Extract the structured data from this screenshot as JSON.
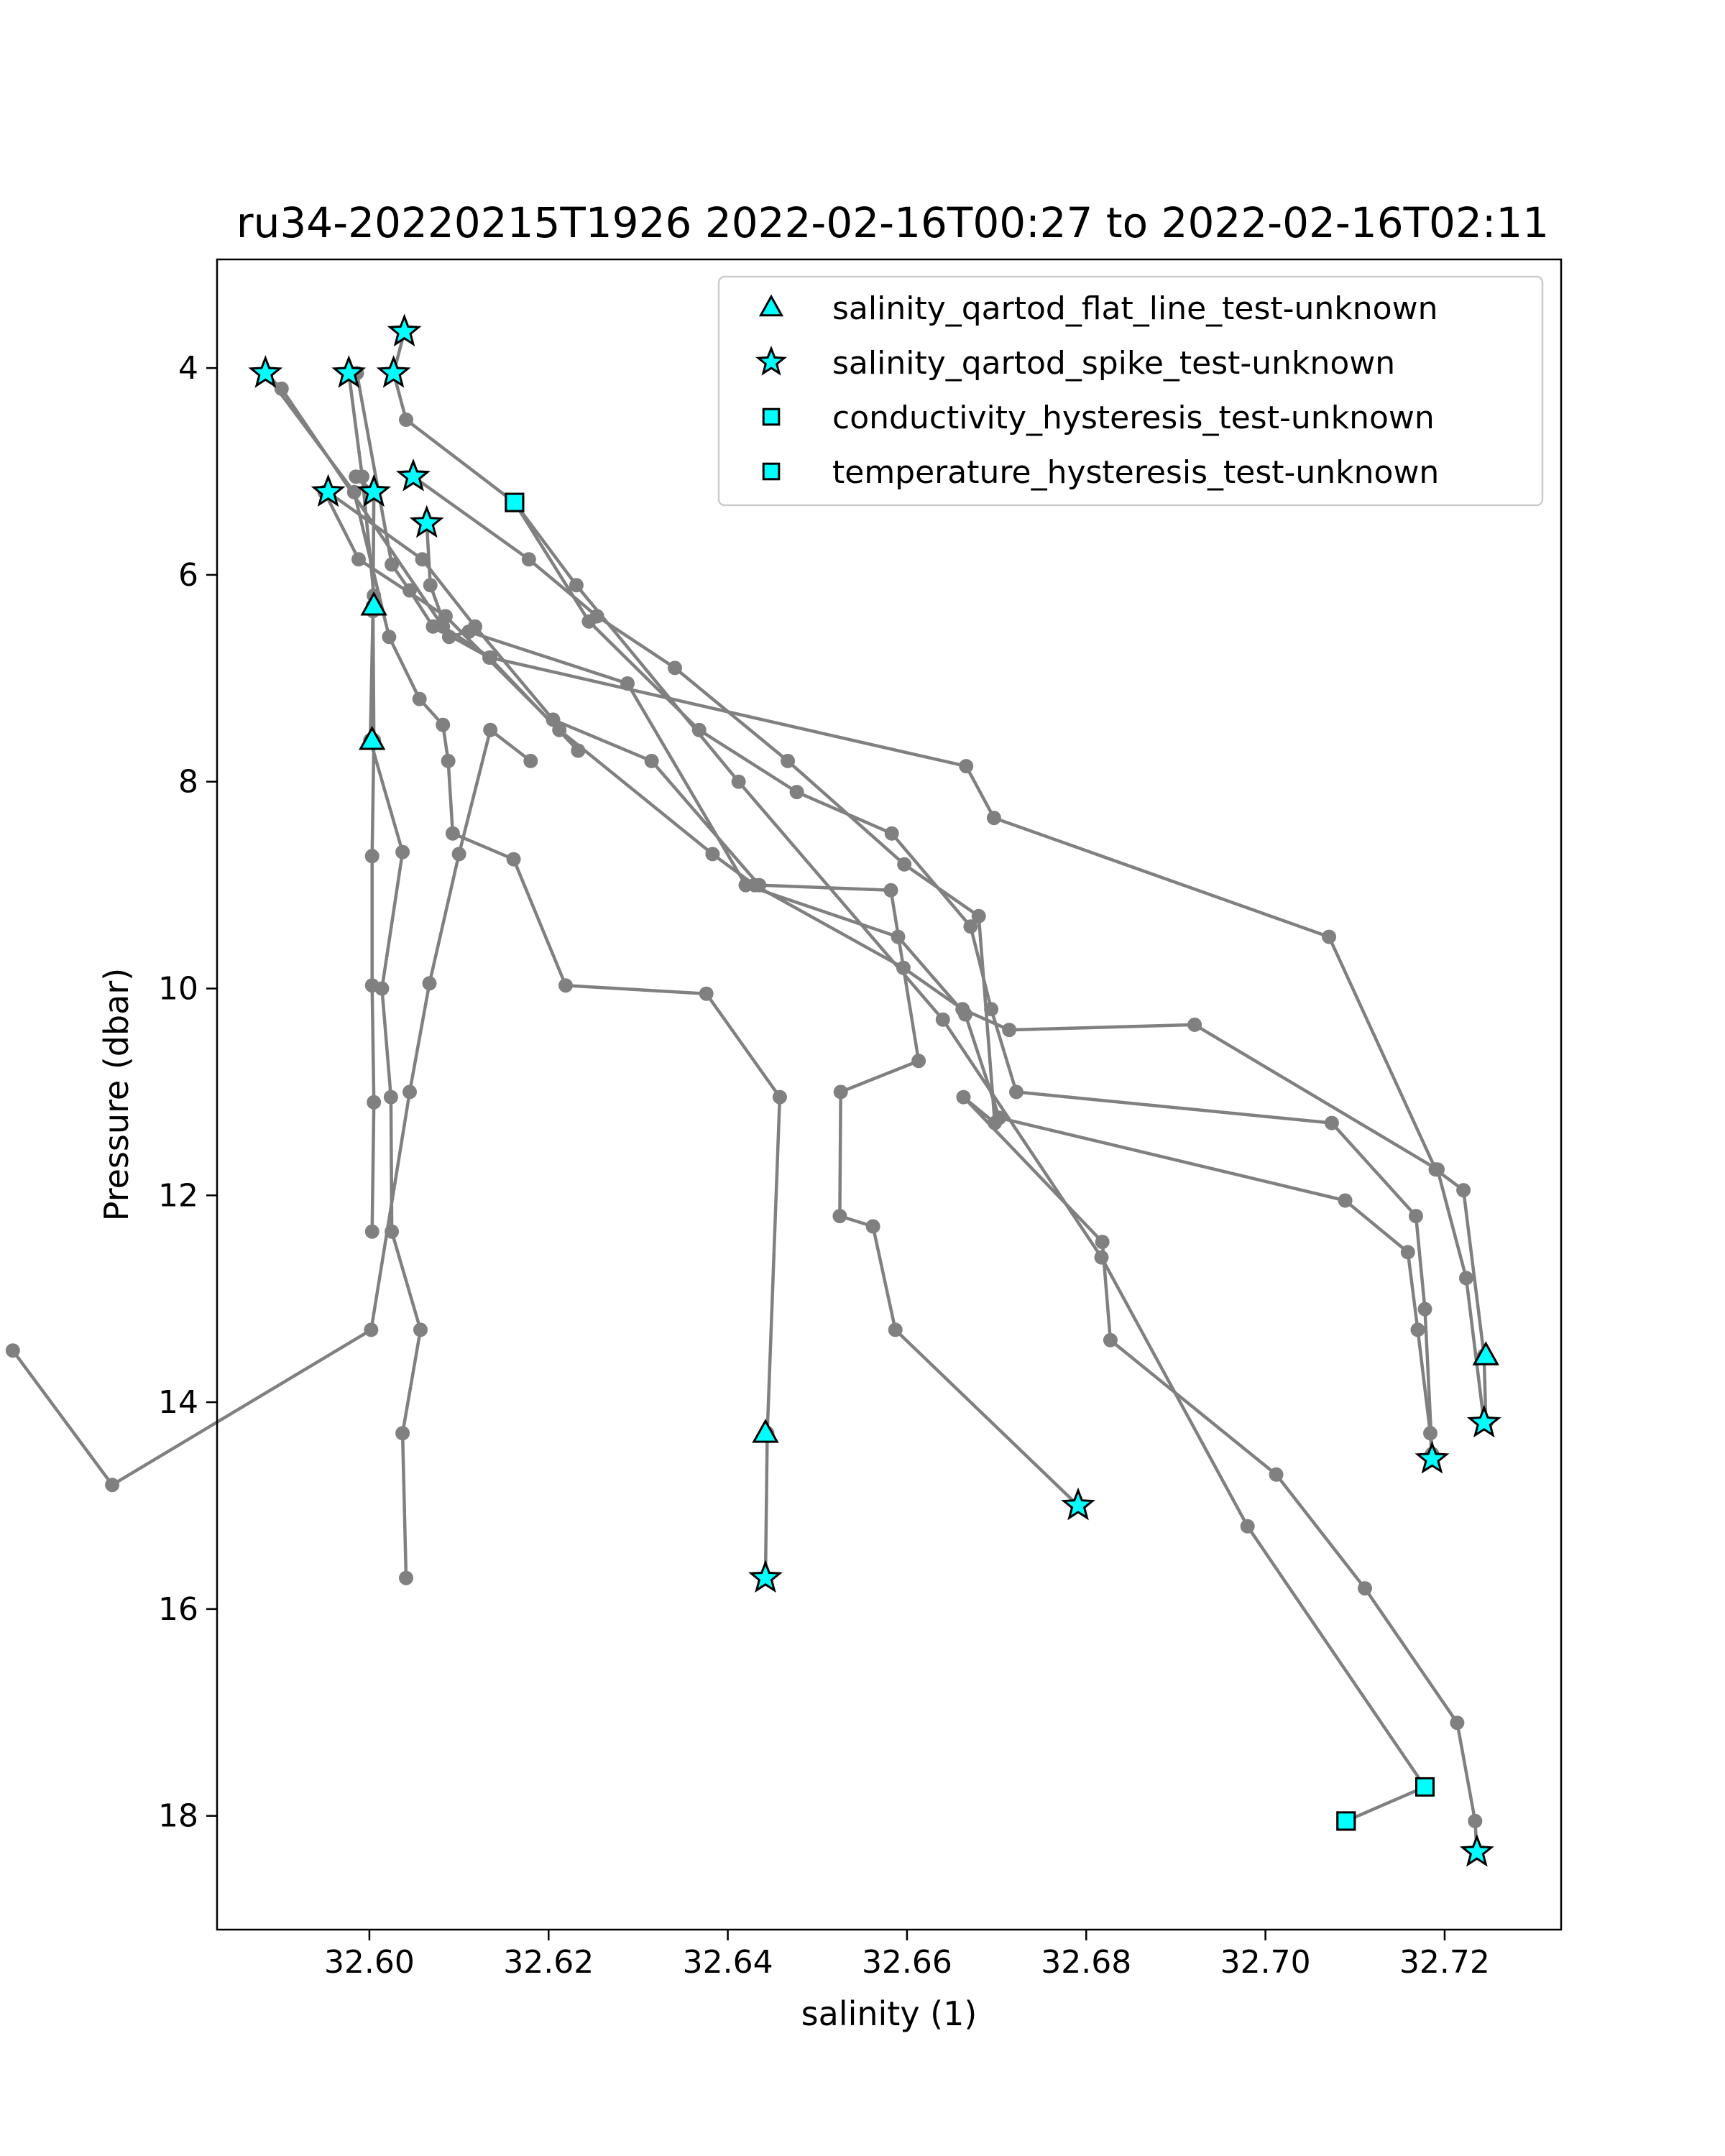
{
  "chart_data": {
    "type": "line",
    "title": "ru34-20220215T1926 2022-02-16T00:27 to 2022-02-16T02:11",
    "xlabel": "salinity (1)",
    "ylabel": "Pressure (dbar)",
    "xlim": [
      32.583,
      32.733
    ],
    "ylim": [
      19.1,
      2.95
    ],
    "y_inverted": true,
    "x_ticks": [
      "32.60",
      "32.62",
      "32.64",
      "32.66",
      "32.68",
      "32.70",
      "32.72"
    ],
    "y_ticks": [
      "4",
      "6",
      "8",
      "10",
      "12",
      "14",
      "16",
      "18"
    ],
    "legend_position": "top-right",
    "colors": {
      "profile_line": "#808080",
      "flag_fill": "#00ffff",
      "flag_edge": "#000000"
    },
    "profiles": [
      {
        "x": [
          32.5977,
          32.5992,
          32.6005,
          32.6004,
          32.6001,
          32.6037,
          32.6014,
          32.6024,
          32.6025,
          32.6057,
          32.6037,
          32.6041
        ],
        "y": [
          4.05,
          5.05,
          6.2,
          6.35,
          7.6,
          8.68,
          10.0,
          11.05,
          12.35,
          13.3,
          14.3,
          15.7
        ]
      },
      {
        "x": [
          32.5985,
          32.6005,
          32.6004,
          32.6005,
          32.6003,
          32.6003,
          32.6005,
          32.6003
        ],
        "y": [
          5.05,
          5.2,
          6.3,
          7.6,
          8.72,
          9.97,
          11.1,
          12.35
        ]
      },
      {
        "x": [
          32.5884,
          32.5983,
          32.6022,
          32.6056,
          32.6082,
          32.6088,
          32.6093,
          32.6161,
          32.6219,
          32.6376,
          32.6458,
          32.6444,
          32.6442
        ],
        "y": [
          4.05,
          5.2,
          6.6,
          7.2,
          7.45,
          7.8,
          8.5,
          8.75,
          9.97,
          10.05,
          11.05,
          14.3,
          15.7
        ]
      },
      {
        "x": [
          32.5602,
          32.5713,
          32.6002,
          32.6045,
          32.6067,
          32.61,
          32.6135,
          32.618
        ],
        "y": [
          13.5,
          14.8,
          13.3,
          11.0,
          9.95,
          8.7,
          7.5,
          7.8
        ]
      },
      {
        "x": [
          32.5986,
          32.6025,
          32.6045,
          32.6071,
          32.6134,
          32.6233
        ],
        "y": [
          4.05,
          5.9,
          6.15,
          6.5,
          6.8,
          7.7
        ]
      },
      {
        "x": [
          32.5954,
          32.6059,
          32.6118,
          32.6205,
          32.6315,
          32.6435,
          32.6582,
          32.6613,
          32.6526,
          32.6525,
          32.6562,
          32.6587,
          32.6791
        ],
        "y": [
          5.2,
          5.85,
          6.5,
          7.4,
          7.8,
          9.0,
          9.05,
          10.7,
          11.0,
          12.2,
          12.3,
          13.3,
          15.0
        ]
      },
      {
        "x": [
          32.595,
          32.5988,
          32.6085,
          32.6212,
          32.6383,
          32.643,
          32.6596,
          32.6662,
          32.6714,
          32.6921,
          32.7192,
          32.7224,
          32.7244
        ],
        "y": [
          5.2,
          5.85,
          6.4,
          7.5,
          8.7,
          9.0,
          9.8,
          10.2,
          10.4,
          10.35,
          11.75,
          12.8,
          14.2
        ]
      },
      {
        "x": [
          32.5884,
          32.5902,
          32.6082,
          32.6135,
          32.6666,
          32.6697,
          32.7071,
          32.719,
          32.7221,
          32.7244,
          32.7246
        ],
        "y": [
          4.05,
          4.2,
          6.5,
          6.8,
          7.85,
          8.35,
          9.5,
          11.75,
          11.95,
          13.55,
          14.2
        ]
      },
      {
        "x": [
          32.6049,
          32.6178,
          32.6254,
          32.6341,
          32.6467,
          32.6597,
          32.668,
          32.6698,
          32.6663,
          32.6818,
          32.6827,
          32.7012,
          32.7111,
          32.7214,
          32.7234,
          32.7236
        ],
        "y": [
          5.05,
          5.85,
          6.4,
          6.9,
          7.8,
          8.8,
          9.3,
          11.3,
          11.05,
          12.45,
          13.4,
          14.7,
          15.8,
          17.1,
          18.05,
          18.35
        ]
      },
      {
        "x": [
          32.6064,
          32.6068,
          32.6089,
          32.6111,
          32.6288,
          32.642,
          32.659,
          32.6665,
          32.6703,
          32.7089,
          32.7159,
          32.717,
          32.7184,
          32.7186
        ],
        "y": [
          5.5,
          6.1,
          6.6,
          6.55,
          7.05,
          9.0,
          9.5,
          10.25,
          11.25,
          12.05,
          12.55,
          13.3,
          14.3,
          14.55
        ]
      },
      {
        "x": [
          32.6039,
          32.6027,
          32.6041,
          32.6162,
          32.6231,
          32.6412,
          32.664,
          32.6817,
          32.698,
          32.7178,
          32.709
        ],
        "y": [
          3.65,
          4.05,
          4.5,
          5.3,
          6.1,
          8.0,
          10.3,
          12.6,
          15.2,
          17.72,
          18.05
        ]
      },
      {
        "x": [
          32.6162,
          32.6245,
          32.6368,
          32.6477,
          32.6583,
          32.6671,
          32.6694,
          32.6722,
          32.7074,
          32.7168,
          32.7178,
          32.7186
        ],
        "y": [
          5.3,
          6.45,
          7.5,
          8.1,
          8.5,
          9.4,
          10.2,
          11.0,
          11.3,
          12.2,
          13.1,
          14.5
        ]
      }
    ],
    "series": [
      {
        "name": "salinity_qartod_flat_line_test-unknown",
        "marker": "triangle",
        "x": [
          32.6005,
          32.6003,
          32.6442,
          32.7246
        ],
        "y": [
          6.3,
          7.6,
          14.3,
          13.55
        ]
      },
      {
        "name": "salinity_qartod_spike_test-unknown",
        "marker": "star",
        "x": [
          32.6039,
          32.5884,
          32.5977,
          32.6027,
          32.5954,
          32.6005,
          32.6049,
          32.6064,
          32.6442,
          32.6791,
          32.7186,
          32.7244,
          32.7236
        ],
        "y": [
          3.65,
          4.05,
          4.05,
          4.05,
          5.2,
          5.2,
          5.05,
          5.5,
          15.7,
          15.0,
          14.55,
          14.2,
          18.35
        ]
      },
      {
        "name": "conductivity_hysteresis_test-unknown",
        "marker": "square",
        "x": [
          32.6162,
          32.709
        ],
        "y": [
          5.3,
          18.05
        ]
      },
      {
        "name": "temperature_hysteresis_test-unknown",
        "marker": "square",
        "x": [
          32.6162,
          32.7178,
          32.709
        ],
        "y": [
          5.3,
          17.72,
          18.05
        ]
      }
    ]
  }
}
